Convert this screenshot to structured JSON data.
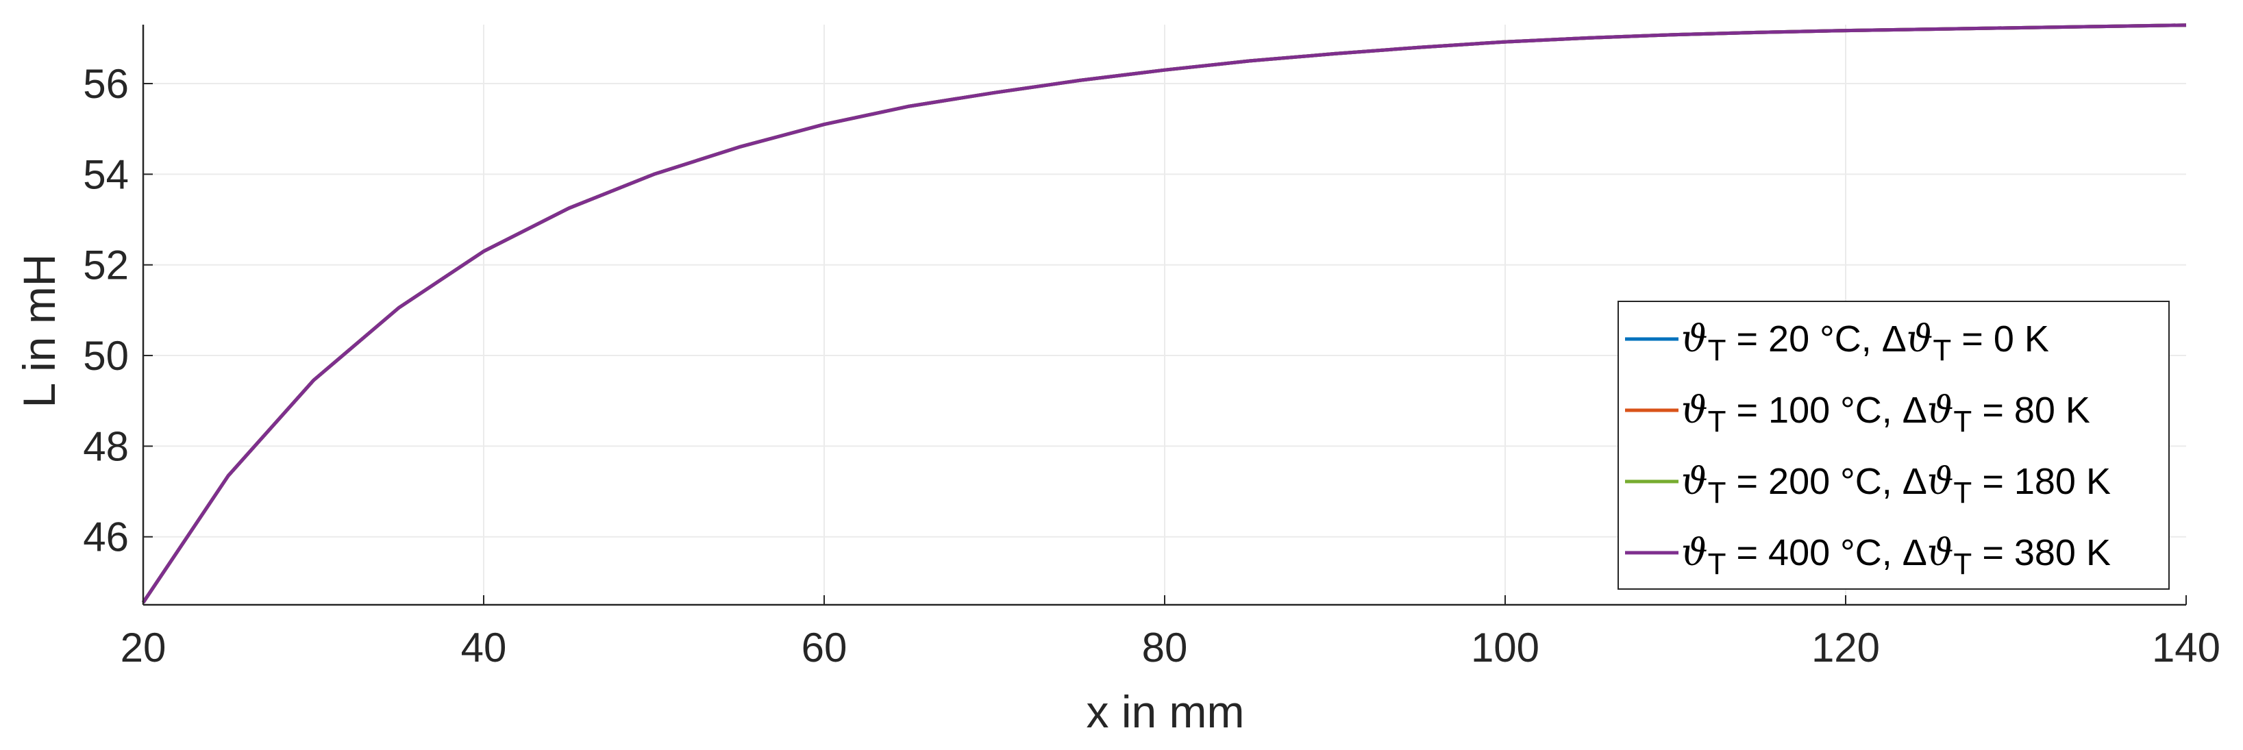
{
  "chart_data": {
    "type": "line",
    "title": "",
    "xlabel": "x in mm",
    "ylabel": "L in mH",
    "xlim": [
      20,
      140
    ],
    "ylim": [
      44.5,
      57.3
    ],
    "xticks": [
      20,
      40,
      60,
      80,
      100,
      120,
      140
    ],
    "yticks": [
      46,
      48,
      50,
      52,
      54,
      56
    ],
    "grid": true,
    "legend_position": "bottom-right",
    "x": [
      20,
      25,
      30,
      35,
      40,
      45,
      50,
      55,
      60,
      65,
      70,
      75,
      80,
      85,
      90,
      95,
      100,
      105,
      110,
      115,
      120,
      125,
      130,
      135,
      140
    ],
    "series": [
      {
        "name": "ϑT = 20 °C, ΔϑT = 0 K",
        "theta_label": "20 °C",
        "delta_label": "0 K",
        "color": "#0072BD",
        "values": [
          44.55,
          47.35,
          49.45,
          51.05,
          52.3,
          53.25,
          54.0,
          54.6,
          55.1,
          55.5,
          55.8,
          56.07,
          56.3,
          56.5,
          56.66,
          56.8,
          56.92,
          57.01,
          57.08,
          57.13,
          57.17,
          57.2,
          57.23,
          57.26,
          57.29
        ]
      },
      {
        "name": "ϑT = 100 °C, ΔϑT = 80 K",
        "theta_label": "100 °C",
        "delta_label": "80 K",
        "color": "#D95319",
        "values": [
          44.55,
          47.35,
          49.45,
          51.05,
          52.3,
          53.25,
          54.0,
          54.6,
          55.1,
          55.5,
          55.8,
          56.07,
          56.3,
          56.5,
          56.66,
          56.8,
          56.92,
          57.01,
          57.08,
          57.13,
          57.17,
          57.2,
          57.23,
          57.26,
          57.29
        ]
      },
      {
        "name": "ϑT = 200 °C, ΔϑT = 180 K",
        "theta_label": "200 °C",
        "delta_label": "180 K",
        "color": "#77AC30",
        "values": [
          44.55,
          47.35,
          49.45,
          51.05,
          52.3,
          53.25,
          54.0,
          54.6,
          55.1,
          55.5,
          55.8,
          56.07,
          56.3,
          56.5,
          56.66,
          56.8,
          56.92,
          57.01,
          57.08,
          57.13,
          57.17,
          57.2,
          57.23,
          57.26,
          57.29
        ]
      },
      {
        "name": "ϑT = 400 °C, ΔϑT = 380 K",
        "theta_label": "400 °C",
        "delta_label": "380 K",
        "color": "#7E2F8E",
        "values": [
          44.55,
          47.35,
          49.45,
          51.05,
          52.3,
          53.25,
          54.0,
          54.6,
          55.1,
          55.5,
          55.8,
          56.07,
          56.3,
          56.5,
          56.66,
          56.8,
          56.92,
          57.01,
          57.08,
          57.13,
          57.17,
          57.2,
          57.23,
          57.26,
          57.29
        ]
      }
    ]
  }
}
